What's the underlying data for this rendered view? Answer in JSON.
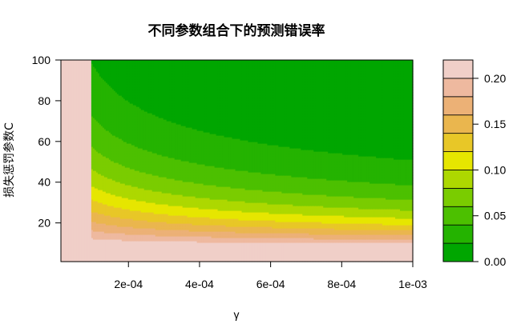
{
  "chart_data": {
    "type": "filled-contour",
    "title": "不同参数组合下的预测错误率",
    "xlabel": "γ",
    "ylabel": "损失惩罚参数C",
    "xlim": [
      1e-05,
      0.001
    ],
    "ylim": [
      1,
      100
    ],
    "x_ticks": [
      0.0002,
      0.0004,
      0.0006,
      0.0008,
      0.001
    ],
    "x_tick_labels": [
      "2e-04",
      "4e-04",
      "6e-04",
      "8e-04",
      "1e-03"
    ],
    "y_ticks": [
      20,
      40,
      60,
      80,
      100
    ],
    "y_tick_labels": [
      "20",
      "40",
      "60",
      "80",
      "100"
    ],
    "levels": [
      0.0,
      0.02,
      0.04,
      0.06,
      0.08,
      0.1,
      0.12,
      0.14,
      0.16,
      0.18,
      0.2,
      0.22
    ],
    "level_colors": [
      "#00A600",
      "#24B300",
      "#4CC000",
      "#7ACC00",
      "#ADD800",
      "#E6E600",
      "#E8C727",
      "#EAB64E",
      "#ECB176",
      "#EEB99F",
      "#F0CFC8",
      "#F2F2F2"
    ],
    "legend_tick_values": [
      0.0,
      0.05,
      0.1,
      0.15,
      0.2
    ],
    "legend_tick_labels": [
      "0.00",
      "0.05",
      "0.10",
      "0.15",
      "0.20"
    ],
    "grid": false,
    "legend_position": "right"
  }
}
